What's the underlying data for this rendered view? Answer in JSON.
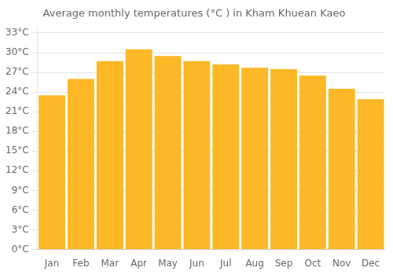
{
  "chart_data": {
    "type": "bar",
    "title": "Average monthly temperatures (°C ) in Kham Khuean Kaeo",
    "categories": [
      "Jan",
      "Feb",
      "Mar",
      "Apr",
      "May",
      "Jun",
      "Jul",
      "Aug",
      "Sep",
      "Oct",
      "Nov",
      "Dec"
    ],
    "values": [
      23.5,
      26.0,
      28.7,
      30.5,
      29.5,
      28.7,
      28.2,
      27.7,
      27.5,
      26.5,
      24.5,
      22.9
    ],
    "color": "#FDB827",
    "ylim": [
      0,
      34
    ],
    "yticks": [
      {
        "value": 0,
        "label": "0°C"
      },
      {
        "value": 3,
        "label": "3°C"
      },
      {
        "value": 6,
        "label": "6°C"
      },
      {
        "value": 9,
        "label": "9°C"
      },
      {
        "value": 12,
        "label": "12°C"
      },
      {
        "value": 15,
        "label": "15°C"
      },
      {
        "value": 18,
        "label": "18°C"
      },
      {
        "value": 21,
        "label": "21°C"
      },
      {
        "value": 24,
        "label": "24°C"
      },
      {
        "value": 27,
        "label": "27°C"
      },
      {
        "value": 30,
        "label": "30°C"
      },
      {
        "value": 33,
        "label": "33°C"
      }
    ],
    "grid": true
  }
}
